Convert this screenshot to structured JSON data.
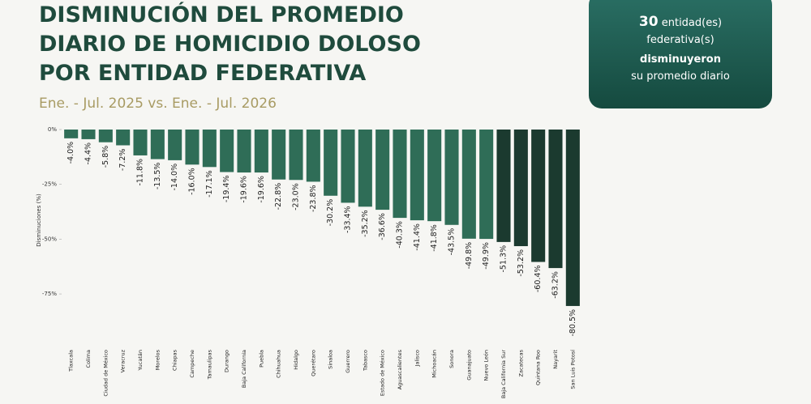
{
  "chart_data": {
    "type": "bar",
    "title_lines": [
      "DISMINUCIÓN DEL PROMEDIO",
      "DIARIO DE HOMICIDIO DOLOSO",
      "POR ENTIDAD FEDERATIVA"
    ],
    "subtitle": "Ene. - Jul. 2025 vs. Ene. - Jul. 2026",
    "y_label": "Disminuciones (%)",
    "categories": [
      "Tlaxcala",
      "Colima",
      "Ciudad de México",
      "Veracruz",
      "Yucatán",
      "Morelos",
      "Chiapas",
      "Campeche",
      "Tamaulipas",
      "Durango",
      "Baja California",
      "Puebla",
      "Chihuahua",
      "Hidalgo",
      "Querétaro",
      "Sinaloa",
      "Guerrero",
      "Tabasco",
      "Estado de México",
      "Aguascalientes",
      "Jalisco",
      "Michoacán",
      "Sonora",
      "Guanajuato",
      "Nuevo León",
      "Baja California Sur",
      "Zacatecas",
      "Quintana Roo",
      "Nayarit",
      "San Luis Potosí"
    ],
    "values": [
      -4.0,
      -4.4,
      -5.8,
      -7.2,
      -11.8,
      -13.5,
      -14.0,
      -16.0,
      -17.1,
      -19.4,
      -19.6,
      -19.6,
      -22.8,
      -23.0,
      -23.8,
      -30.2,
      -33.4,
      -35.2,
      -36.6,
      -40.3,
      -41.4,
      -41.8,
      -43.5,
      -49.8,
      -49.9,
      -51.3,
      -53.2,
      -60.4,
      -63.2,
      -80.5
    ],
    "value_labels": [
      "-4.0%",
      "-4.4%",
      "-5.8%",
      "-7.2%",
      "-11.8%",
      "-13.5%",
      "-14.0%",
      "-16.0%",
      "-17.1%",
      "-19.4%",
      "-19.6%",
      "-19.6%",
      "-22.8%",
      "-23.0%",
      "-23.8%",
      "-30.2%",
      "-33.4%",
      "-35.2%",
      "-36.6%",
      "-40.3%",
      "-41.4%",
      "-41.8%",
      "-43.5%",
      "-49.8%",
      "-49.9%",
      "-51.3%",
      "-53.2%",
      "-60.4%",
      "-63.2%",
      "-80.5%"
    ],
    "colors": [
      "#2f6d57",
      "#2f6d57",
      "#2f6d57",
      "#2f6d57",
      "#2f6d57",
      "#2f6d57",
      "#2f6d57",
      "#2f6d57",
      "#2f6d57",
      "#2f6d57",
      "#2f6d57",
      "#2f6d57",
      "#2f6d57",
      "#2f6d57",
      "#2f6d57",
      "#2f6d57",
      "#2f6d57",
      "#2f6d57",
      "#2f6d57",
      "#2f6d57",
      "#2f6d57",
      "#2f6d57",
      "#2f6d57",
      "#2f6d57",
      "#2f6d57",
      "#1b3a2f",
      "#1b3a2f",
      "#1b3a2f",
      "#1b3a2f",
      "#1b3a2f"
    ],
    "ylim": [
      -82,
      0
    ],
    "yticks": [
      {
        "value": 0,
        "label": "0%"
      },
      {
        "value": -25,
        "label": "-25%"
      },
      {
        "value": -50,
        "label": "-50%"
      },
      {
        "value": -75,
        "label": "-75%"
      }
    ],
    "callout": {
      "number": 30,
      "lines": [
        "entidad(es)",
        "federativa(s)",
        "disminuyeron",
        "su promedio diario"
      ]
    }
  }
}
